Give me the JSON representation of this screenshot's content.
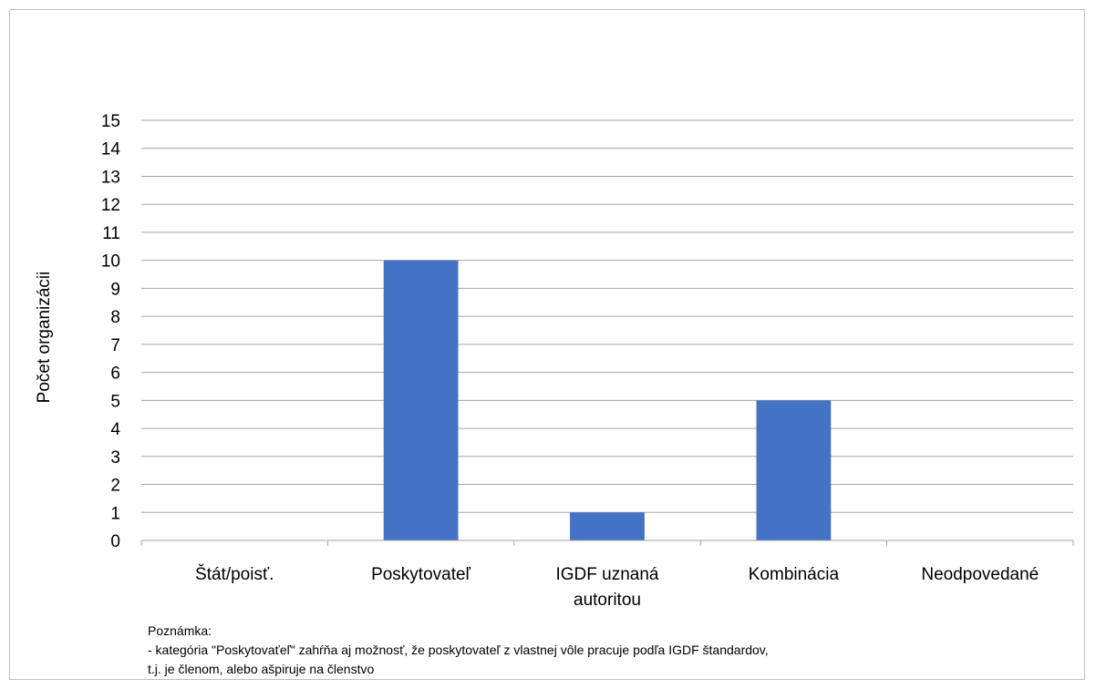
{
  "chart_data": {
    "type": "bar",
    "categories": [
      [
        "Štát/poisť."
      ],
      [
        "Poskytovateľ"
      ],
      [
        "IGDF uznaná",
        "autoritou"
      ],
      [
        "Kombinácia"
      ],
      [
        "Neodpovedané"
      ]
    ],
    "values": [
      0,
      10,
      1,
      5,
      0
    ],
    "title": "",
    "xlabel": "",
    "ylabel": "Počet organizácii",
    "ylim": [
      0,
      15
    ],
    "ytick_step": 1,
    "grid": true,
    "bar_color": "#4472c4",
    "grid_color": "#a6a6a6"
  },
  "note": {
    "heading": "Poznámka:",
    "line1": "- kategória \"Poskytovaťeľ\" zahŕňa aj možnosť, že poskytovateľ z vlastnej vôle pracuje podľa IGDF štandardov,",
    "line2": "t.j. je členom, alebo ašpiruje na členstvo"
  }
}
